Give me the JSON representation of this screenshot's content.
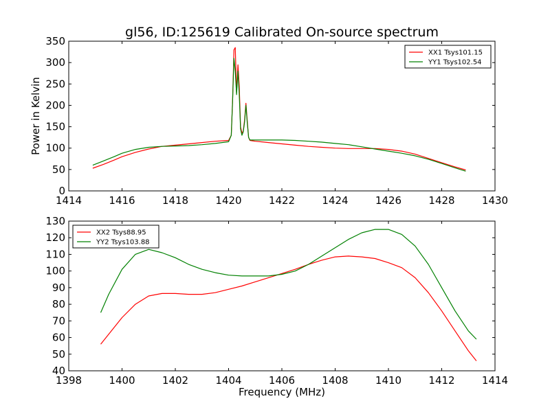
{
  "figure": {
    "title": "gl56, ID:125619 Calibrated On-source spectrum"
  },
  "chart_data": [
    {
      "type": "line",
      "title": "gl56, ID:125619 Calibrated On-source spectrum",
      "xlabel": "",
      "ylabel": "Power in Kelvin",
      "xlim": [
        1414,
        1430
      ],
      "ylim": [
        0,
        350
      ],
      "xticks": [
        1414,
        1416,
        1418,
        1420,
        1422,
        1424,
        1426,
        1428,
        1430
      ],
      "yticks": [
        0,
        50,
        100,
        150,
        200,
        250,
        300,
        350
      ],
      "grid": false,
      "legend_position": "top-right",
      "series": [
        {
          "name": "XX1 Tsys101.15",
          "color": "#ff0000",
          "x": [
            1414.9,
            1415.3,
            1415.7,
            1416.0,
            1416.5,
            1417.0,
            1417.5,
            1418.0,
            1418.5,
            1419.0,
            1419.5,
            1420.0,
            1420.1,
            1420.15,
            1420.2,
            1420.25,
            1420.3,
            1420.35,
            1420.4,
            1420.45,
            1420.5,
            1420.55,
            1420.6,
            1420.65,
            1420.7,
            1420.75,
            1420.8,
            1420.9,
            1421.0,
            1421.5,
            1422.0,
            1422.5,
            1423.0,
            1423.5,
            1424.0,
            1424.5,
            1425.0,
            1425.5,
            1426.0,
            1426.5,
            1427.0,
            1427.5,
            1428.0,
            1428.5,
            1428.9
          ],
          "y": [
            53,
            62,
            72,
            80,
            90,
            98,
            104,
            107,
            110,
            113,
            116,
            118,
            130,
            210,
            330,
            335,
            230,
            295,
            245,
            150,
            135,
            140,
            165,
            205,
            165,
            125,
            118,
            117,
            116,
            113,
            110,
            107,
            104,
            102,
            100,
            99,
            99,
            99,
            97,
            93,
            86,
            76,
            66,
            56,
            49
          ]
        },
        {
          "name": "YY1 Tsys102.54",
          "color": "#008000",
          "x": [
            1414.9,
            1415.3,
            1415.7,
            1416.0,
            1416.5,
            1417.0,
            1417.5,
            1418.0,
            1418.5,
            1419.0,
            1419.5,
            1420.0,
            1420.1,
            1420.15,
            1420.2,
            1420.25,
            1420.3,
            1420.35,
            1420.4,
            1420.45,
            1420.5,
            1420.55,
            1420.6,
            1420.65,
            1420.7,
            1420.75,
            1420.8,
            1420.9,
            1421.0,
            1421.5,
            1422.0,
            1422.5,
            1423.0,
            1423.5,
            1424.0,
            1424.5,
            1425.0,
            1425.5,
            1426.0,
            1426.5,
            1427.0,
            1427.5,
            1428.0,
            1428.5,
            1428.9
          ],
          "y": [
            60,
            70,
            80,
            88,
            97,
            102,
            104,
            105,
            106,
            108,
            111,
            115,
            130,
            210,
            310,
            280,
            225,
            280,
            225,
            145,
            130,
            138,
            160,
            200,
            160,
            125,
            119,
            119,
            119,
            119,
            119,
            118,
            116,
            114,
            111,
            108,
            103,
            98,
            93,
            88,
            82,
            74,
            64,
            54,
            46
          ]
        }
      ]
    },
    {
      "type": "line",
      "title": "",
      "xlabel": "Frequency (MHz)",
      "ylabel": "",
      "xlim": [
        1398,
        1414
      ],
      "ylim": [
        40,
        130
      ],
      "xticks": [
        1398,
        1400,
        1402,
        1404,
        1406,
        1408,
        1410,
        1412,
        1414
      ],
      "yticks": [
        40,
        50,
        60,
        70,
        80,
        90,
        100,
        110,
        120,
        130
      ],
      "grid": false,
      "legend_position": "top-left",
      "series": [
        {
          "name": "XX2 Tsys88.95",
          "color": "#ff0000",
          "x": [
            1399.2,
            1399.5,
            1400.0,
            1400.5,
            1401.0,
            1401.5,
            1402.0,
            1402.5,
            1403.0,
            1403.5,
            1404.0,
            1404.5,
            1405.0,
            1405.5,
            1406.0,
            1406.5,
            1407.0,
            1407.5,
            1408.0,
            1408.5,
            1409.0,
            1409.5,
            1410.0,
            1410.5,
            1411.0,
            1411.5,
            1412.0,
            1412.5,
            1413.0,
            1413.3
          ],
          "y": [
            56,
            62,
            72,
            80,
            85,
            86.5,
            86.5,
            86,
            86,
            87,
            89,
            91,
            93.5,
            96,
            98.5,
            101,
            104,
            106.5,
            108.5,
            109,
            108.5,
            107.5,
            105,
            102,
            96,
            87,
            76,
            64,
            52,
            46
          ]
        },
        {
          "name": "YY2 Tsys103.88",
          "color": "#008000",
          "x": [
            1399.2,
            1399.5,
            1400.0,
            1400.5,
            1401.0,
            1401.5,
            1402.0,
            1402.5,
            1403.0,
            1403.5,
            1404.0,
            1404.5,
            1405.0,
            1405.5,
            1406.0,
            1406.5,
            1407.0,
            1407.5,
            1408.0,
            1408.5,
            1409.0,
            1409.5,
            1410.0,
            1410.5,
            1411.0,
            1411.5,
            1412.0,
            1412.5,
            1413.0,
            1413.3
          ],
          "y": [
            75,
            86,
            101,
            110,
            113,
            111,
            108,
            104,
            101,
            99,
            97.5,
            97,
            97,
            97,
            98,
            100,
            104,
            109,
            114,
            119,
            123,
            125,
            125,
            122,
            115,
            104,
            90,
            76,
            64,
            59
          ]
        }
      ]
    }
  ]
}
